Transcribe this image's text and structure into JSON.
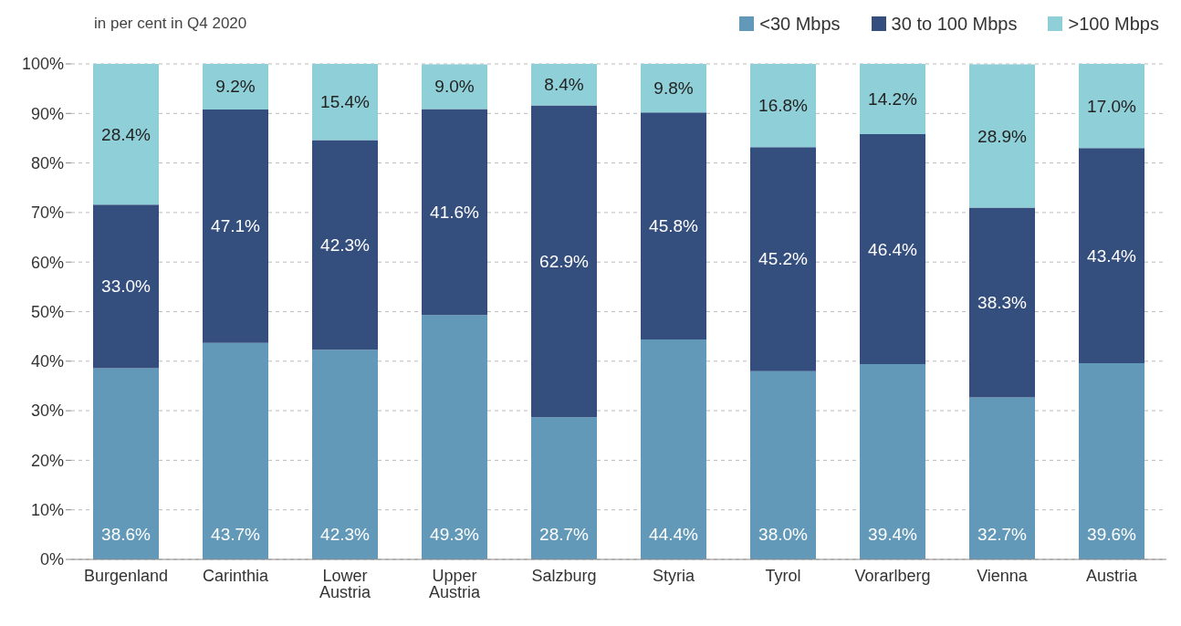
{
  "chart_data": {
    "type": "bar",
    "stacked": true,
    "subtitle": "in per cent in Q4 2020",
    "categories": [
      "Burgenland",
      "Carinthia",
      "Lower Austria",
      "Upper Austria",
      "Salzburg",
      "Styria",
      "Tyrol",
      "Vorarlberg",
      "Vienna",
      "Austria"
    ],
    "series": [
      {
        "name": "<30 Mbps",
        "color": "#6399b8",
        "values": [
          38.6,
          43.7,
          42.3,
          49.3,
          28.7,
          44.4,
          38.0,
          39.4,
          32.7,
          39.6
        ],
        "value_labels": [
          "38.6%",
          "43.7%",
          "42.3%",
          "49.3%",
          "28.7%",
          "44.4%",
          "38.0%",
          "39.4%",
          "32.7%",
          "39.6%"
        ]
      },
      {
        "name": "30 to 100 Mbps",
        "color": "#344e7e",
        "values": [
          33.0,
          47.1,
          42.3,
          41.6,
          62.9,
          45.8,
          45.2,
          46.4,
          38.3,
          43.4
        ],
        "value_labels": [
          "33.0%",
          "47.1%",
          "42.3%",
          "41.6%",
          "62.9%",
          "45.8%",
          "45.2%",
          "46.4%",
          "38.3%",
          "43.4%"
        ]
      },
      {
        "name": ">100 Mbps",
        "color": "#8fd0d8",
        "values": [
          28.4,
          9.2,
          15.4,
          9.0,
          8.4,
          9.8,
          16.8,
          14.2,
          28.9,
          17.0
        ],
        "value_labels": [
          "28.4%",
          "9.2%",
          "15.4%",
          "9.0%",
          "8.4%",
          "9.8%",
          "16.8%",
          "14.2%",
          "28.9%",
          "17.0%"
        ]
      }
    ],
    "ylim": [
      0,
      100
    ],
    "yticks": [
      {
        "value": 0,
        "label": "0%"
      },
      {
        "value": 10,
        "label": "10%"
      },
      {
        "value": 20,
        "label": "20%"
      },
      {
        "value": 30,
        "label": "30%"
      },
      {
        "value": 40,
        "label": "40%"
      },
      {
        "value": 50,
        "label": "50%"
      },
      {
        "value": 60,
        "label": "60%"
      },
      {
        "value": 70,
        "label": "70%"
      },
      {
        "value": 80,
        "label": "80%"
      },
      {
        "value": 90,
        "label": "90%"
      },
      {
        "value": 100,
        "label": "100%"
      }
    ],
    "grid": "y",
    "legend": "top right"
  }
}
